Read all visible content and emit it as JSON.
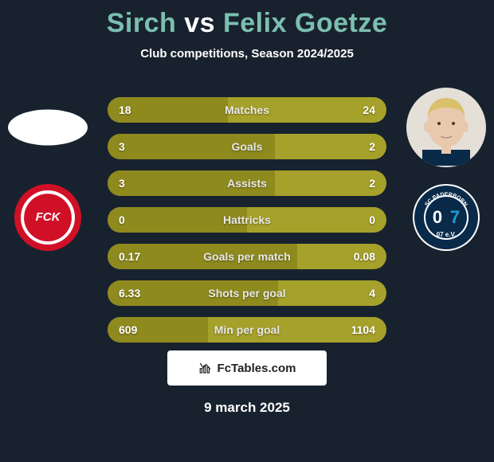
{
  "title": {
    "player1": "Sirch",
    "vs": "vs",
    "player2": "Felix Goetze",
    "player1_color": "#7bbfb0",
    "vs_color": "#ffffff",
    "player2_color": "#7bbfb0"
  },
  "subtitle": "Club competitions, Season 2024/2025",
  "date": "9 march 2025",
  "watermark": "FcTables.com",
  "clubs": {
    "left": {
      "name": "kaiserslautern-badge",
      "bg": "#d01026",
      "fg": "#ffffff",
      "text": "FCK"
    },
    "right": {
      "name": "paderborn-badge",
      "bg": "#ffffff",
      "fg": "#0a2a4a",
      "ring": "#0a2a4a",
      "text": "SC PADERBORN 07"
    }
  },
  "stats": {
    "bar_bg": "#a6a12b",
    "fill_bg": "#8e8a1e",
    "rows": [
      {
        "label": "Matches",
        "left": "18",
        "right": "24",
        "fill_pct": 43
      },
      {
        "label": "Goals",
        "left": "3",
        "right": "2",
        "fill_pct": 60
      },
      {
        "label": "Assists",
        "left": "3",
        "right": "2",
        "fill_pct": 60
      },
      {
        "label": "Hattricks",
        "left": "0",
        "right": "0",
        "fill_pct": 50
      },
      {
        "label": "Goals per match",
        "left": "0.17",
        "right": "0.08",
        "fill_pct": 68
      },
      {
        "label": "Shots per goal",
        "left": "6.33",
        "right": "4",
        "fill_pct": 61
      },
      {
        "label": "Min per goal",
        "left": "609",
        "right": "1104",
        "fill_pct": 36
      }
    ]
  },
  "players": {
    "right_face": {
      "skin": "#e9c9ad",
      "hair": "#d9c06a",
      "shirt": "#0a2a4a"
    }
  }
}
